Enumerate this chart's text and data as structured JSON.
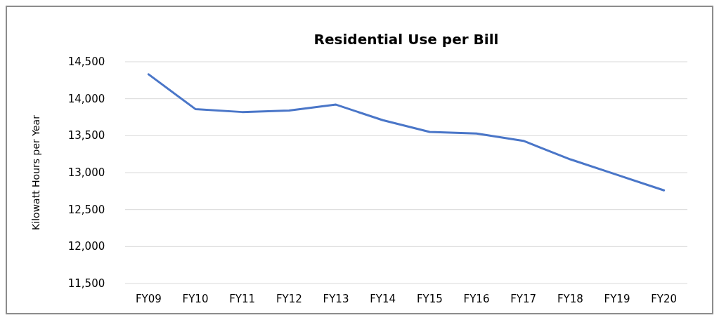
{
  "chart_data": {
    "type": "line",
    "title": "Residential Use per Bill",
    "ylabel": "Kilowatt Hours per Year",
    "categories": [
      "FY09",
      "FY10",
      "FY11",
      "FY12",
      "FY13",
      "FY14",
      "FY15",
      "FY16",
      "FY17",
      "FY18",
      "FY19",
      "FY20"
    ],
    "series": [
      {
        "color": "#4a76c8",
        "values": [
          14330,
          13860,
          13820,
          13840,
          13920,
          13710,
          13550,
          13530,
          13430,
          13180,
          12970,
          12760
        ]
      }
    ],
    "ylim": [
      11500,
      14500
    ],
    "yticks": [
      {
        "value": 11500,
        "label": "11,500"
      },
      {
        "value": 12000,
        "label": "12,000"
      },
      {
        "value": 12500,
        "label": "12,500"
      },
      {
        "value": 13000,
        "label": "13,000"
      },
      {
        "value": 13500,
        "label": "13,500"
      },
      {
        "value": 14000,
        "label": "14,000"
      },
      {
        "value": 14500,
        "label": "14,500"
      }
    ],
    "grid": "y",
    "marker": "none",
    "line_style": "solid"
  }
}
